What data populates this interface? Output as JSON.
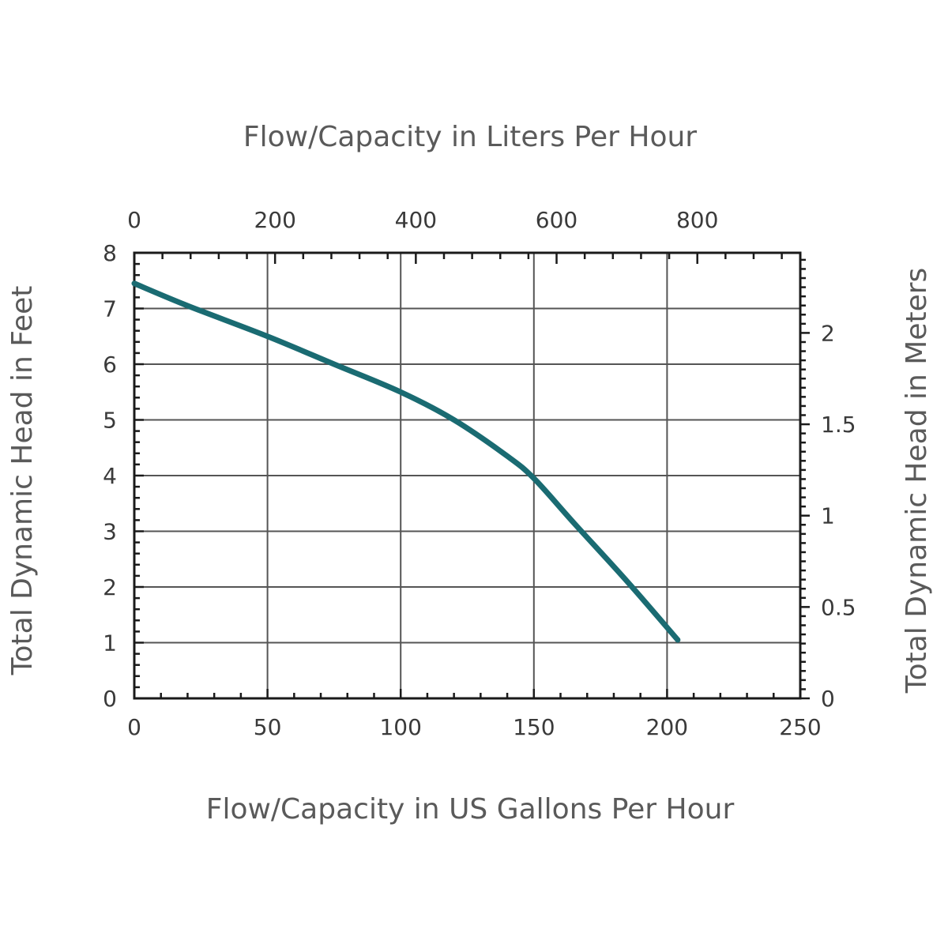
{
  "chart_data": {
    "type": "line",
    "title": "",
    "x_label_bottom": "Flow/Capacity in US Gallons Per Hour",
    "x_label_top": "Flow/Capacity in Liters Per Hour",
    "y_label_left": "Total Dynamic Head in Feet",
    "y_label_right": "Total Dynamic Head in Meters",
    "xlim": [
      0,
      250
    ],
    "ylim": [
      0,
      8
    ],
    "x_ticks": [
      0,
      50,
      100,
      150,
      200,
      250
    ],
    "y_ticks": [
      0,
      1,
      2,
      3,
      4,
      5,
      6,
      7,
      8
    ],
    "x_top_ticks_lph": [
      0,
      200,
      400,
      600,
      800
    ],
    "y_right_ticks_m": [
      0,
      0.5,
      1,
      1.5,
      2
    ],
    "x_minor_step": 10,
    "y_minor_step": 0.2,
    "x_top_minor_step_lph": 40,
    "y_right_minor_step_m": 0.05,
    "gal_to_liter": 3.785,
    "m_to_ft": 3.2808,
    "grid": true,
    "series": [
      {
        "color": "#1a6b72",
        "x": [
          0,
          20,
          50,
          75,
          100,
          120,
          140,
          150,
          165,
          185,
          204
        ],
        "y": [
          7.45,
          7.05,
          6.5,
          6.0,
          5.5,
          5.0,
          4.35,
          3.95,
          3.15,
          2.1,
          1.05
        ]
      }
    ]
  }
}
